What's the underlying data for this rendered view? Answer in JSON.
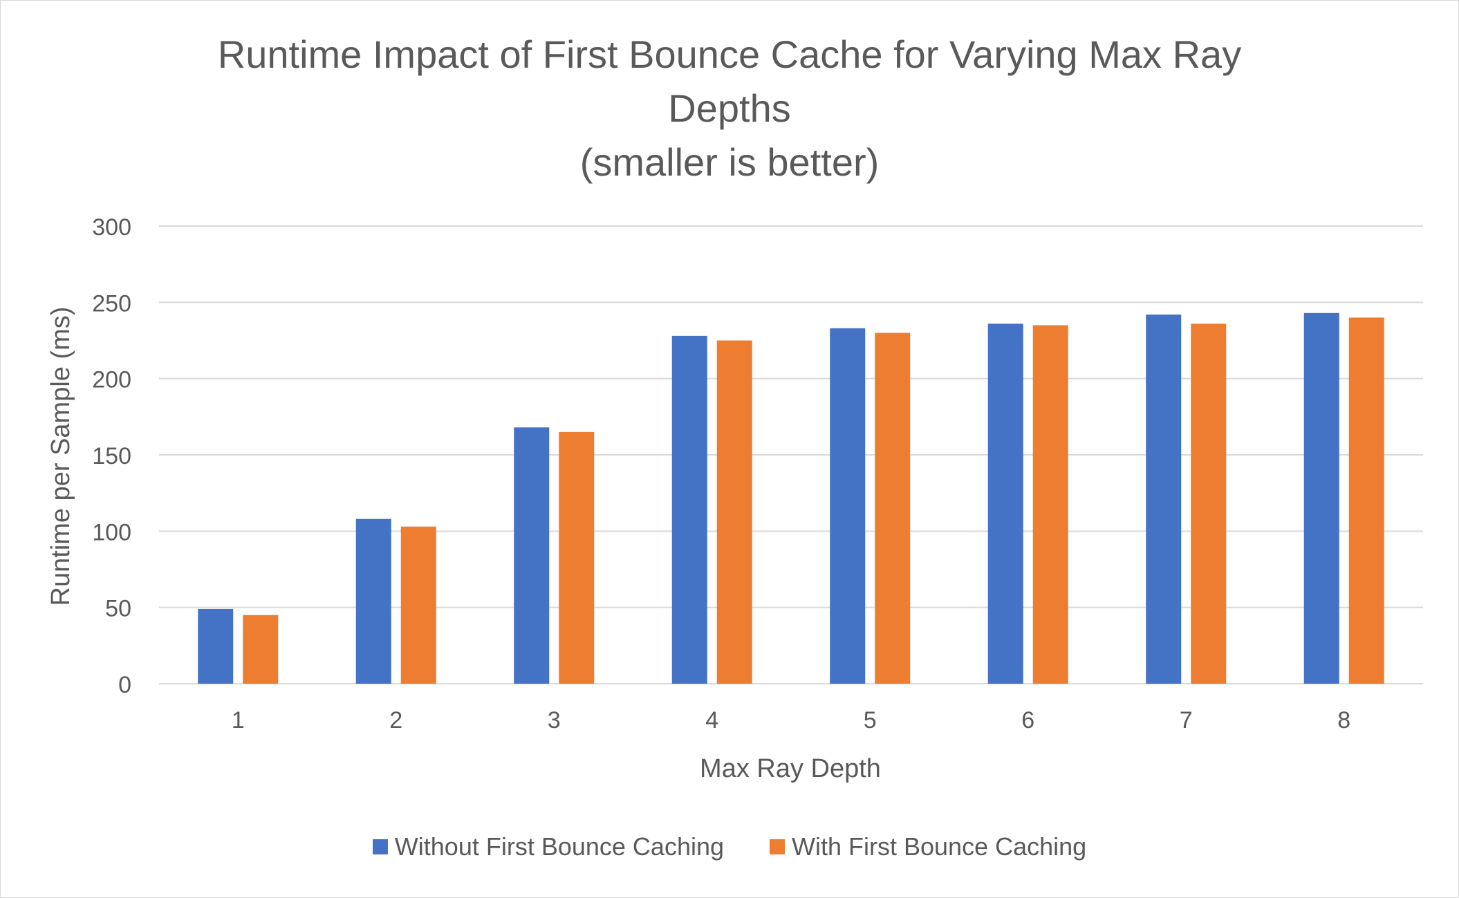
{
  "chart_data": {
    "type": "bar",
    "title_lines": [
      "Runtime Impact of First Bounce Cache for Varying Max Ray",
      "Depths",
      "(smaller is better)"
    ],
    "xlabel": "Max Ray Depth",
    "ylabel": "Runtime per Sample (ms)",
    "categories": [
      "1",
      "2",
      "3",
      "4",
      "5",
      "6",
      "7",
      "8"
    ],
    "y_ticks": [
      "0",
      "50",
      "100",
      "150",
      "200",
      "250",
      "300"
    ],
    "ylim": [
      0,
      300
    ],
    "grid": true,
    "legend_position": "bottom",
    "series": [
      {
        "name": "Without First Bounce Caching",
        "color": "#4472c4",
        "values": [
          49,
          108,
          168,
          228,
          233,
          236,
          242,
          243
        ]
      },
      {
        "name": "With First Bounce Caching",
        "color": "#ed7d31",
        "values": [
          45,
          103,
          165,
          225,
          230,
          235,
          236,
          240
        ]
      }
    ]
  }
}
